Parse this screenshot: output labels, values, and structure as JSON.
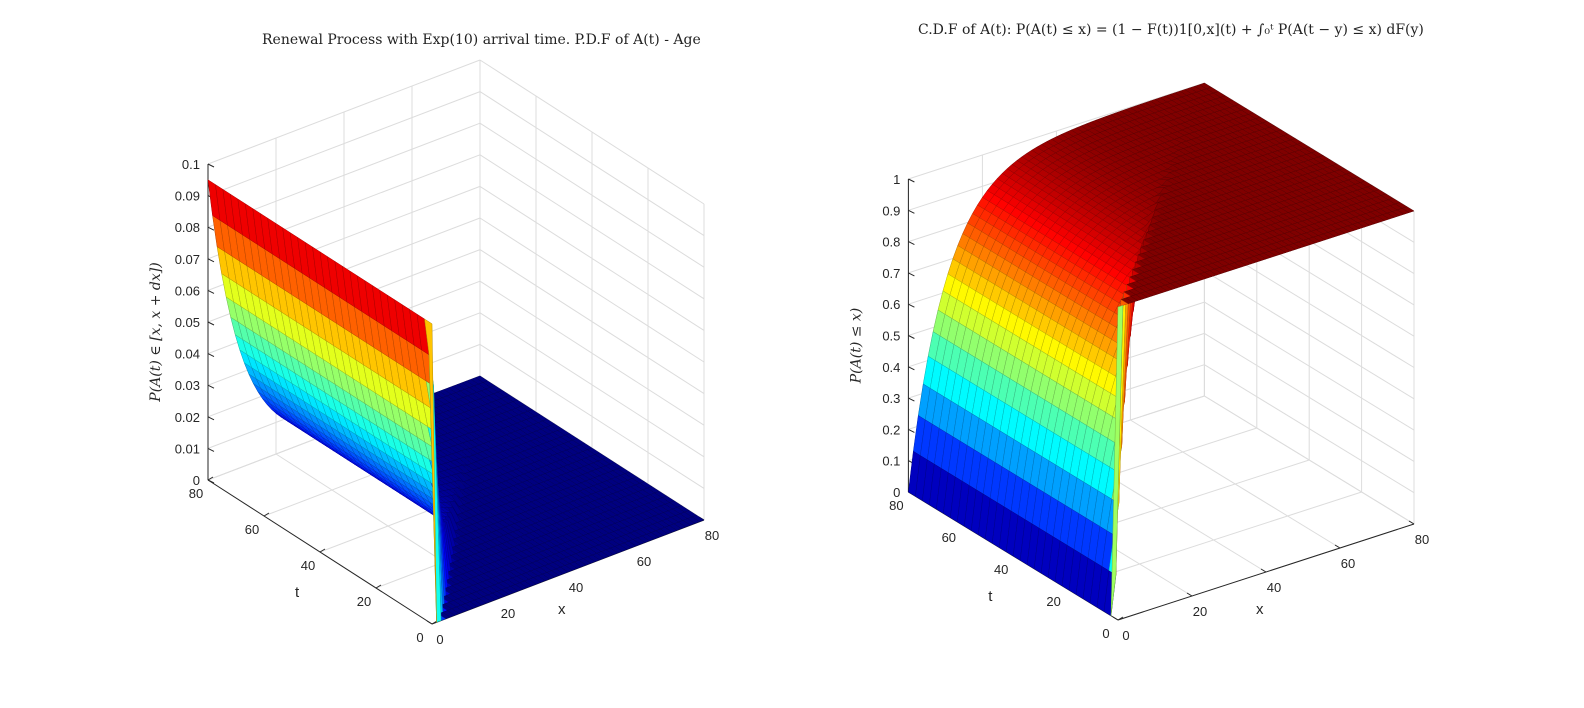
{
  "chart_data": [
    {
      "type": "surface",
      "title": "Renewal Process with Exp(10) arrival time. P.D.F of A(t) - Age",
      "xlabel": "x",
      "ylabel": "t",
      "zlabel": "P(A(t) ∈ [x, x + dx])",
      "xlim": [
        0,
        80
      ],
      "ylim": [
        0,
        80
      ],
      "zlim": [
        0,
        0.1
      ],
      "x_ticks": [
        "0",
        "20",
        "40",
        "60",
        "80"
      ],
      "y_ticks": [
        "0",
        "20",
        "40",
        "60",
        "80"
      ],
      "z_ticks": [
        "0",
        "0.01",
        "0.02",
        "0.03",
        "0.04",
        "0.05",
        "0.06",
        "0.07",
        "0.08",
        "0.09",
        "0.1"
      ],
      "grid": true,
      "colormap": "jet"
    },
    {
      "type": "surface",
      "title": "C.D.F of A(t): P(A(t) ≤ x) = (1 − F(t))1[0,x](t) + ∫₀ᵗ P(A(t − y) ≤ x) dF(y)",
      "xlabel": "x",
      "ylabel": "t",
      "zlabel": "P(A(t) ≤ x)",
      "xlim": [
        0,
        80
      ],
      "ylim": [
        0,
        80
      ],
      "zlim": [
        0,
        1
      ],
      "x_ticks": [
        "0",
        "20",
        "40",
        "60",
        "80"
      ],
      "y_ticks": [
        "0",
        "20",
        "40",
        "60",
        "80"
      ],
      "z_ticks": [
        "0",
        "0.1",
        "0.2",
        "0.3",
        "0.4",
        "0.5",
        "0.6",
        "0.7",
        "0.8",
        "0.9",
        "1"
      ],
      "grid": true,
      "colormap": "jet"
    }
  ]
}
